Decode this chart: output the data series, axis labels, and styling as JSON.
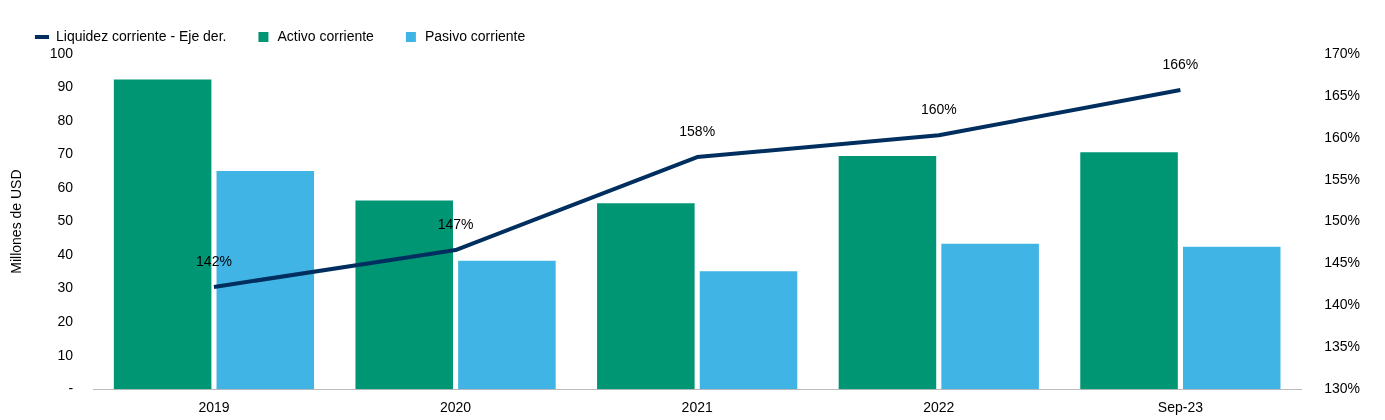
{
  "chart_data": {
    "type": "bar",
    "ylabel": "Millones de USD",
    "categories": [
      "2019",
      "2020",
      "2021",
      "2022",
      "Sep-23"
    ],
    "series": [
      {
        "name": "Activo corriente",
        "color": "#009673",
        "values": [
          92.4,
          56.3,
          55.5,
          69.6,
          70.7
        ]
      },
      {
        "name": "Pasivo corriente",
        "color": "#41b4e6",
        "values": [
          65.1,
          38.3,
          35.2,
          43.4,
          42.5
        ]
      },
      {
        "name": "Liquidez corriente - Eje der.",
        "type": "line",
        "axis": "y2",
        "color": "#002f5f",
        "values": [
          142.2,
          146.6,
          157.7,
          160.3,
          165.7
        ],
        "value_labels": [
          "142%",
          "147%",
          "158%",
          "160%",
          "166%"
        ]
      }
    ],
    "ylim": [
      0,
      100
    ],
    "yticks": [
      {
        "value": 0,
        "label": "-"
      },
      10,
      20,
      30,
      40,
      50,
      60,
      70,
      80,
      90,
      100
    ],
    "y2lim": [
      130,
      170
    ],
    "y2ticks": [
      {
        "value": 130,
        "label": "130%"
      },
      {
        "value": 135,
        "label": "135%"
      },
      {
        "value": 140,
        "label": "140%"
      },
      {
        "value": 145,
        "label": "145%"
      },
      {
        "value": 150,
        "label": "150%"
      },
      {
        "value": 155,
        "label": "155%"
      },
      {
        "value": 160,
        "label": "160%"
      },
      {
        "value": 165,
        "label": "165%"
      },
      {
        "value": 170,
        "label": "170%"
      }
    ],
    "grid": false,
    "legend": "top left",
    "marker": "none",
    "line_style": "solid"
  }
}
